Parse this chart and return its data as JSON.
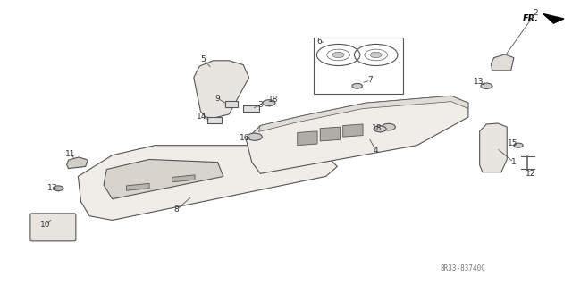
{
  "bg_color": "#ffffff",
  "line_color": "#555555",
  "text_color": "#333333",
  "part_number_text": "8R33-83740C",
  "fr_label": "FR.",
  "fig_width": 6.4,
  "fig_height": 3.19,
  "dpi": 100
}
